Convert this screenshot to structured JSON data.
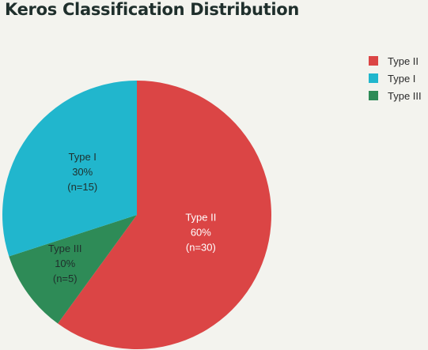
{
  "title": "Keros Classification Distribution",
  "chart_data": {
    "type": "pie",
    "title": "Keros Classification Distribution",
    "slices": [
      {
        "label": "Type II",
        "value": 30,
        "percent": "60%",
        "count_label": "(n=30)",
        "color": "#db4545"
      },
      {
        "label": "Type III",
        "value": 5,
        "percent": "10%",
        "count_label": "(n=5)",
        "color": "#2e8b57"
      },
      {
        "label": "Type I",
        "value": 15,
        "percent": "30%",
        "count_label": "(n=15)",
        "color": "#21b6cd"
      }
    ],
    "legend": {
      "placement": "top-right",
      "entries": [
        {
          "label": "Type II",
          "color": "#db4545"
        },
        {
          "label": "Type I",
          "color": "#21b6cd"
        },
        {
          "label": "Type III",
          "color": "#2e8b57"
        }
      ]
    }
  }
}
